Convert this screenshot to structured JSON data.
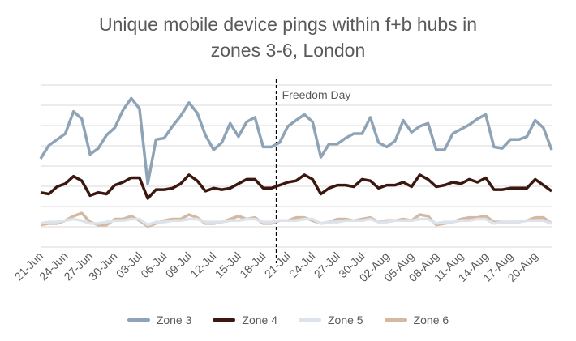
{
  "chart_data": {
    "type": "line",
    "title_lines": [
      "Unique mobile device pings within f+b hubs in",
      "zones 3-6, London"
    ],
    "xlabel": "",
    "ylabel": "",
    "x_tick_labels": [
      "21-Jun",
      "24-Jun",
      "27-Jun",
      "30-Jun",
      "03-Jul",
      "06-Jul",
      "09-Jul",
      "12-Jul",
      "15-Jul",
      "18-Jul",
      "21-Jul",
      "24-Jul",
      "27-Jul",
      "30-Jul",
      "02-Aug",
      "05-Aug",
      "08-Aug",
      "11-Aug",
      "14-Aug",
      "17-Aug",
      "20-Aug"
    ],
    "x_start": "2021-06-21",
    "y_axis": {
      "tick_labels_shown": false,
      "gridlines": 8
    },
    "grid": true,
    "legend_position": "bottom",
    "annotation": {
      "label": "Freedom Day",
      "x": "2021-07-19",
      "style": "dashed vertical line"
    },
    "series": [
      {
        "name": "Zone 3",
        "color": "#8EA3B6",
        "values": [
          6.0,
          6.9,
          7.3,
          7.7,
          9.2,
          8.7,
          6.3,
          6.7,
          7.6,
          8.1,
          9.3,
          10.1,
          9.4,
          4.3,
          7.3,
          7.4,
          8.2,
          8.9,
          9.8,
          9.1,
          7.6,
          6.6,
          7.1,
          8.4,
          7.5,
          8.5,
          8.8,
          6.8,
          6.8,
          7.1,
          8.2,
          8.6,
          9.0,
          8.5,
          6.1,
          7.0,
          7.0,
          7.4,
          7.7,
          7.7,
          8.8,
          7.1,
          6.8,
          7.2,
          8.6,
          7.8,
          8.2,
          8.4,
          6.6,
          6.6,
          7.7,
          8.0,
          8.3,
          8.7,
          9.0,
          6.8,
          6.7,
          7.3,
          7.3,
          7.5,
          8.6,
          8.1,
          6.6
        ]
      },
      {
        "name": "Zone 4",
        "color": "#3B1710",
        "values": [
          3.7,
          3.6,
          4.1,
          4.3,
          4.8,
          4.5,
          3.5,
          3.7,
          3.6,
          4.2,
          4.4,
          4.7,
          4.7,
          3.3,
          3.9,
          3.9,
          4.0,
          4.3,
          4.9,
          4.5,
          3.8,
          4.0,
          3.9,
          4.0,
          4.3,
          4.6,
          4.6,
          4.0,
          4.0,
          4.2,
          4.4,
          4.5,
          4.9,
          4.6,
          3.6,
          4.0,
          4.2,
          4.2,
          4.1,
          4.6,
          4.5,
          4.0,
          4.2,
          4.2,
          4.4,
          4.1,
          4.9,
          4.6,
          4.1,
          4.2,
          4.4,
          4.3,
          4.6,
          4.4,
          4.7,
          3.9,
          3.9,
          4.0,
          4.0,
          4.0,
          4.6,
          4.2,
          3.8
        ]
      },
      {
        "name": "Zone 5",
        "color": "#DDE3EA",
        "values": [
          1.6,
          1.7,
          1.7,
          1.8,
          1.9,
          1.8,
          1.6,
          1.6,
          1.7,
          1.8,
          1.8,
          1.9,
          1.9,
          1.5,
          1.7,
          1.7,
          1.8,
          1.8,
          1.9,
          1.9,
          1.7,
          1.7,
          1.7,
          1.8,
          1.8,
          1.9,
          1.9,
          1.7,
          1.7,
          1.8,
          1.8,
          1.8,
          1.9,
          1.9,
          1.6,
          1.7,
          1.7,
          1.8,
          1.8,
          1.8,
          1.9,
          1.7,
          1.7,
          1.8,
          1.8,
          1.8,
          1.9,
          1.9,
          1.6,
          1.7,
          1.7,
          1.8,
          1.8,
          1.9,
          1.9,
          1.6,
          1.7,
          1.7,
          1.7,
          1.8,
          1.8,
          1.8,
          1.6
        ]
      },
      {
        "name": "Zone 6",
        "color": "#D5B8A1",
        "values": [
          1.5,
          1.6,
          1.6,
          1.8,
          2.1,
          2.3,
          1.7,
          1.5,
          1.5,
          1.9,
          1.9,
          2.1,
          1.8,
          1.4,
          1.6,
          1.8,
          1.9,
          1.9,
          2.2,
          2.0,
          1.6,
          1.6,
          1.7,
          1.9,
          2.1,
          1.9,
          2.0,
          1.6,
          1.6,
          1.8,
          1.8,
          2.0,
          2.0,
          1.8,
          1.6,
          1.7,
          1.9,
          1.9,
          1.8,
          1.9,
          2.0,
          1.7,
          1.8,
          1.8,
          1.9,
          1.8,
          2.2,
          2.1,
          1.5,
          1.6,
          1.7,
          1.9,
          2.0,
          2.0,
          2.1,
          1.7,
          1.7,
          1.7,
          1.7,
          1.8,
          2.0,
          2.0,
          1.6
        ]
      }
    ]
  }
}
